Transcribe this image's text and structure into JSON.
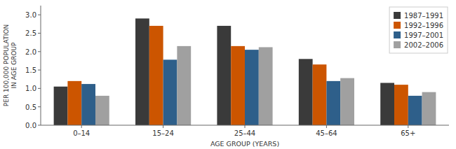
{
  "chart_data": {
    "type": "bar",
    "categories": [
      "0–14",
      "15–24",
      "25–44",
      "45–64",
      "65+"
    ],
    "series": [
      {
        "name": "1987–1991",
        "color": "#3a3a3a",
        "values": [
          1.05,
          2.9,
          2.7,
          1.8,
          1.15
        ]
      },
      {
        "name": "1992–1996",
        "color": "#cc5500",
        "values": [
          1.2,
          2.7,
          2.15,
          1.65,
          1.1
        ]
      },
      {
        "name": "1997–2001",
        "color": "#2e5f8a",
        "values": [
          1.12,
          1.78,
          2.05,
          1.2,
          0.8
        ]
      },
      {
        "name": "2002–2006",
        "color": "#a0a0a0",
        "values": [
          0.8,
          2.15,
          2.12,
          1.28,
          0.9
        ]
      }
    ],
    "xlabel": "AGE GROUP (YEARS)",
    "ylabel": "PER 100,000 POPULATION\nIN AGE GROUP",
    "ylim": [
      0.0,
      3.25
    ],
    "yticks": [
      {
        "value": 0.0,
        "label": "0.0"
      },
      {
        "value": 0.5,
        "label": "0.5"
      },
      {
        "value": 1.0,
        "label": "1.0"
      },
      {
        "value": 1.5,
        "label": "1.5"
      },
      {
        "value": 2.0,
        "label": "2.0"
      },
      {
        "value": 2.5,
        "label": "2.5"
      },
      {
        "value": 3.0,
        "label": "3.0"
      }
    ],
    "grid": false,
    "legend": "upper right"
  }
}
